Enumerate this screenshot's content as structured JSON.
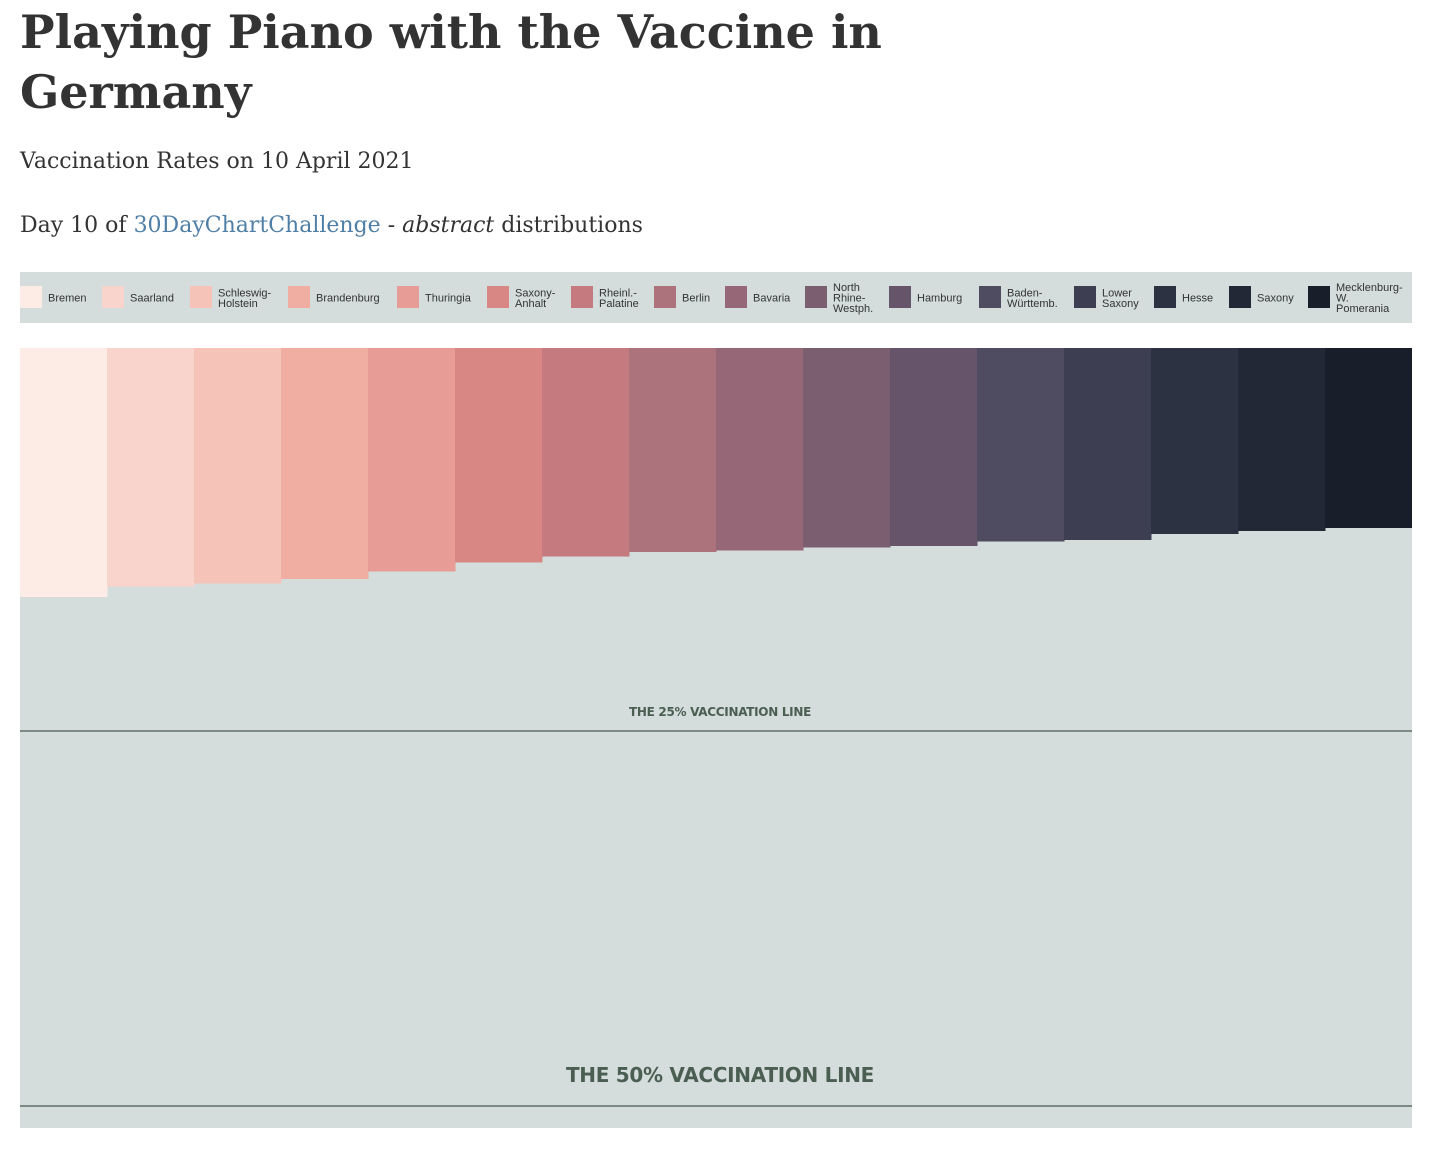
{
  "header": {
    "title": "Playing Piano with the Vaccine in Germany",
    "subtitle": "Vaccination Rates on 10 April 2021",
    "day_prefix": "Day 10 of",
    "challenge_link": "30DayChartChallenge",
    "separator": "-",
    "topic_italic": "abstract",
    "topic_rest": "distributions"
  },
  "colors": {
    "background_panel": "#d4dcdc",
    "reference_line": "#5f6f6a",
    "reference_label": "#4a5e52",
    "link": "#4f7fa6"
  },
  "chart_data": {
    "type": "bar",
    "orientation": "vertical-downward",
    "categories": [
      "Bremen",
      "Saarland",
      "Schleswig-Holstein",
      "Brandenburg",
      "Thuringia",
      "Saxony-Anhalt",
      "Rheinl.-Palatine",
      "Berlin",
      "Bavaria",
      "North Rhine-Westph.",
      "Hamburg",
      "Baden-Württemb.",
      "Lower Saxony",
      "Hesse",
      "Saxony",
      "Mecklenburg-W. Pomerania"
    ],
    "legend_lines": [
      [
        "Bremen"
      ],
      [
        "Saarland"
      ],
      [
        "Schleswig-",
        "Holstein"
      ],
      [
        "Brandenburg"
      ],
      [
        "Thuringia"
      ],
      [
        "Saxony-",
        "Anhalt"
      ],
      [
        "Rheinl.-",
        "Palatine"
      ],
      [
        "Berlin"
      ],
      [
        "Bavaria"
      ],
      [
        "North",
        "Rhine-",
        "Westph."
      ],
      [
        "Hamburg"
      ],
      [
        "Baden-",
        "Württemb."
      ],
      [
        "Lower",
        "Saxony"
      ],
      [
        "Hesse"
      ],
      [
        "Saxony"
      ],
      [
        "Mecklenburg-",
        "W.",
        "Pomerania"
      ]
    ],
    "values": [
      16.6,
      15.9,
      15.7,
      15.4,
      14.9,
      14.3,
      13.9,
      13.6,
      13.5,
      13.3,
      13.2,
      12.9,
      12.8,
      12.4,
      12.2,
      12.0
    ],
    "colors": [
      "#fdebe6",
      "#f9d4cd",
      "#f5c3b8",
      "#f0ada2",
      "#e79c95",
      "#d88784",
      "#c57a7f",
      "#ac737c",
      "#966877",
      "#7c5e71",
      "#65546a",
      "#4f4b61",
      "#3d3e52",
      "#2d3243",
      "#222836",
      "#191f2a"
    ],
    "reference_lines": [
      {
        "value": 25,
        "label": "THE 25% VACCINATION LINE"
      },
      {
        "value": 50,
        "label": "THE 50% VACCINATION LINE"
      }
    ],
    "ylim": [
      0,
      50
    ],
    "legend_position": "top"
  }
}
